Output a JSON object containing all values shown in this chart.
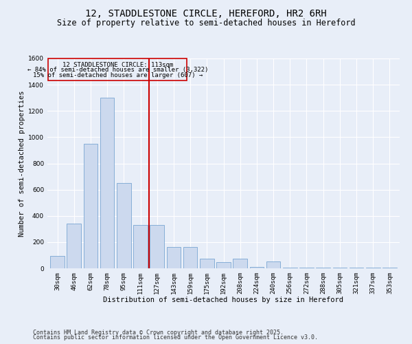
{
  "title": "12, STADDLESTONE CIRCLE, HEREFORD, HR2 6RH",
  "subtitle": "Size of property relative to semi-detached houses in Hereford",
  "xlabel": "Distribution of semi-detached houses by size in Hereford",
  "ylabel": "Number of semi-detached properties",
  "categories": [
    "30sqm",
    "46sqm",
    "62sqm",
    "78sqm",
    "95sqm",
    "111sqm",
    "127sqm",
    "143sqm",
    "159sqm",
    "175sqm",
    "192sqm",
    "208sqm",
    "224sqm",
    "240sqm",
    "256sqm",
    "272sqm",
    "288sqm",
    "305sqm",
    "321sqm",
    "337sqm",
    "353sqm"
  ],
  "values": [
    95,
    340,
    950,
    1300,
    650,
    330,
    330,
    165,
    165,
    75,
    45,
    75,
    10,
    50,
    5,
    5,
    5,
    5,
    5,
    5,
    5
  ],
  "bar_color": "#ccd9ee",
  "bar_edge_color": "#6699cc",
  "vline_index": 5,
  "vline_color": "#cc0000",
  "ylim": [
    0,
    1600
  ],
  "yticks": [
    0,
    200,
    400,
    600,
    800,
    1000,
    1200,
    1400,
    1600
  ],
  "annotation_title": "12 STADDLESTONE CIRCLE: 113sqm",
  "annotation_line1": "← 84% of semi-detached houses are smaller (3,322)",
  "annotation_line2": "15% of semi-detached houses are larger (607) →",
  "annotation_box_color": "#cc0000",
  "footer_line1": "Contains HM Land Registry data © Crown copyright and database right 2025.",
  "footer_line2": "Contains public sector information licensed under the Open Government Licence v3.0.",
  "bg_color": "#e8eef8",
  "grid_color": "#ffffff",
  "title_fontsize": 10,
  "subtitle_fontsize": 8.5,
  "label_fontsize": 7.5,
  "tick_fontsize": 6.5,
  "annotation_fontsize": 6.5,
  "footer_fontsize": 6
}
